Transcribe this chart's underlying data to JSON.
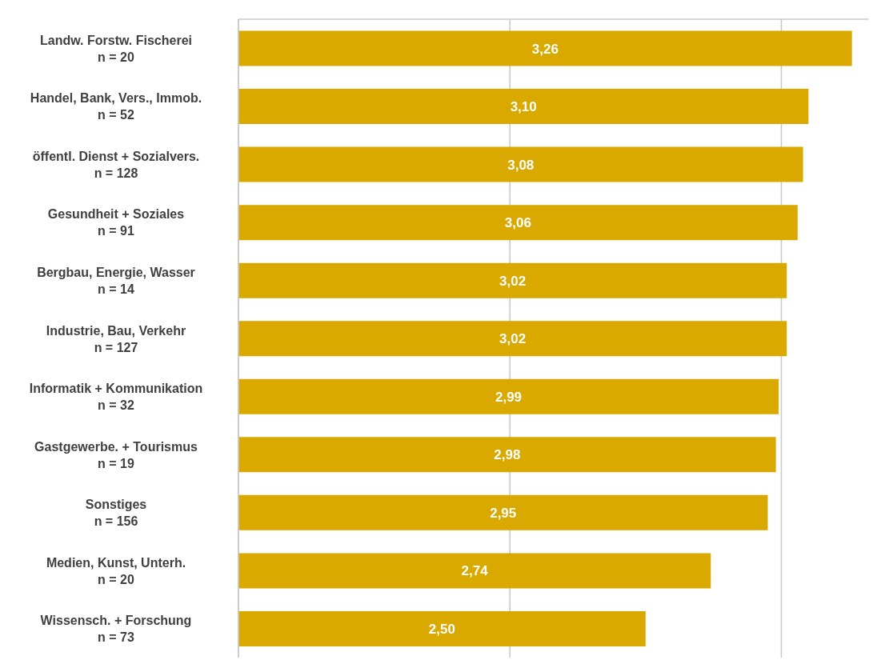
{
  "chart_data": {
    "type": "bar",
    "orientation": "horizontal",
    "categories": [
      "Landw. Forstw. Fischerei\nn = 20",
      "Handel, Bank, Vers., Immob.\nn = 52",
      "öffentl. Dienst + Sozialvers.\nn = 128",
      "Gesundheit + Soziales\nn = 91",
      "Bergbau, Energie, Wasser\nn = 14",
      "Industrie, Bau, Verkehr\nn = 127",
      "Informatik + Kommunikation\nn = 32",
      "Gastgewerbe. + Tourismus\nn = 19",
      "Sonstiges\nn = 156",
      "Medien, Kunst, Unterh.\nn = 20",
      "Wissensch. + Forschung\nn = 73"
    ],
    "values": [
      3.26,
      3.1,
      3.08,
      3.06,
      3.02,
      3.02,
      2.99,
      2.98,
      2.95,
      2.74,
      2.5
    ],
    "value_labels": [
      "3,26",
      "3,10",
      "3,08",
      "3,06",
      "3,02",
      "3,02",
      "2,99",
      "2,98",
      "2,95",
      "2,74",
      "2,50"
    ],
    "color": "#d9a900",
    "xlim": [
      1,
      3.32
    ],
    "xticks": [
      {
        "value": 1,
        "label": null
      },
      {
        "value": 2,
        "label": null
      },
      {
        "value": 3,
        "label": null
      }
    ],
    "grid": "x",
    "tick_labels": "y",
    "legend": false
  }
}
